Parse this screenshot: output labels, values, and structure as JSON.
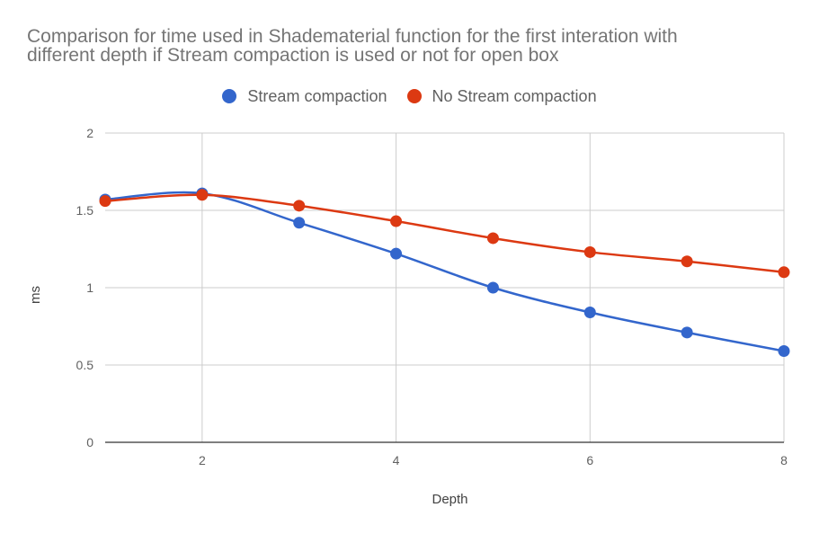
{
  "chart_data": {
    "type": "line",
    "title_lines": [
      "Comparison for time used in Shadematerial function for the first interation with",
      "different depth if Stream compaction is used or not for open box"
    ],
    "xlabel": "Depth",
    "ylabel": "ms",
    "xlim": [
      1,
      8
    ],
    "ylim": [
      0,
      2
    ],
    "x_ticks": [
      2,
      4,
      6,
      8
    ],
    "y_ticks": [
      0,
      0.5,
      1,
      1.5,
      2
    ],
    "x_tick_labels": [
      "2",
      "4",
      "6",
      "8"
    ],
    "y_tick_labels": [
      "0",
      "0.5",
      "1",
      "1.5",
      "2"
    ],
    "grid": true,
    "legend_position": "top",
    "smooth": true,
    "x": [
      1,
      2,
      3,
      4,
      5,
      6,
      7,
      8
    ],
    "series": [
      {
        "name": "Stream compaction",
        "color": "#3366cc",
        "values": [
          1.57,
          1.61,
          1.42,
          1.22,
          1.0,
          0.84,
          0.71,
          0.59
        ]
      },
      {
        "name": "No Stream compaction",
        "color": "#dc3912",
        "values": [
          1.56,
          1.6,
          1.53,
          1.43,
          1.32,
          1.23,
          1.17,
          1.1
        ]
      }
    ]
  }
}
